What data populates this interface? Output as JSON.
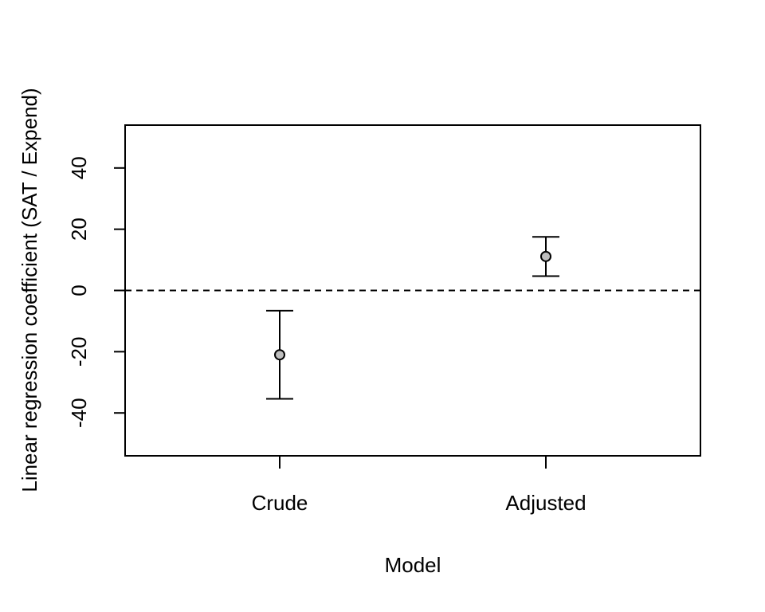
{
  "chart_data": {
    "type": "scatter",
    "title": "",
    "xlabel": "Model",
    "ylabel": "Linear regression coefficient (SAT / Expend)",
    "categories": [
      "Crude",
      "Adjusted"
    ],
    "points": [
      {
        "category": "Crude",
        "estimate": -21.0,
        "ci_low": -35.4,
        "ci_high": -6.6
      },
      {
        "category": "Adjusted",
        "estimate": 11.1,
        "ci_low": 4.7,
        "ci_high": 17.5
      }
    ],
    "ylim": [
      -54,
      54
    ],
    "yticks": [
      -40,
      -20,
      0,
      20,
      40
    ],
    "reference_line": {
      "y": 0,
      "style": "dashed"
    },
    "grid": false,
    "colors": {
      "point_fill": "#bebebe",
      "stroke": "#000000"
    }
  }
}
